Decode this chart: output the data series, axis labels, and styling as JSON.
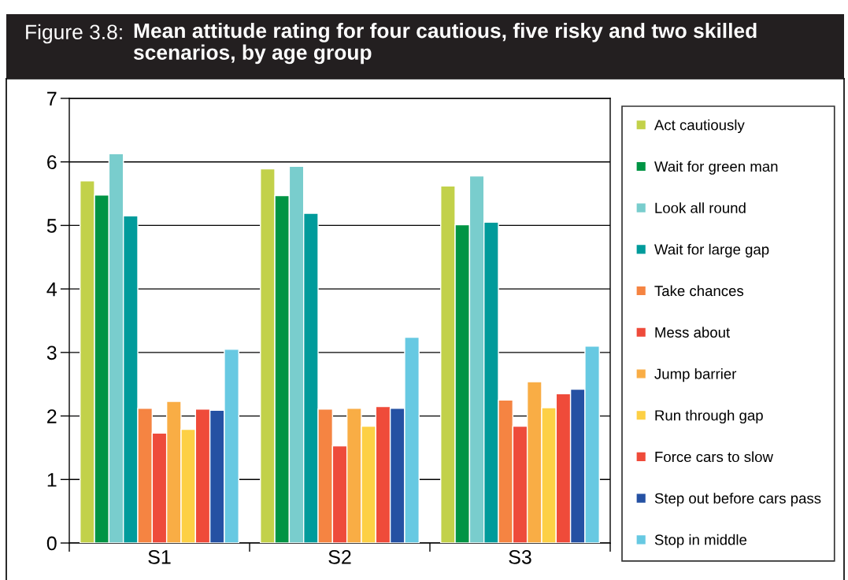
{
  "chart_data": {
    "type": "bar",
    "title": "Mean attitude rating for four cautious, five risky and two skilled scenarios, by age group",
    "annotations": [
      "Figure 3.8:"
    ],
    "categories": [
      "S1",
      "S2",
      "S3"
    ],
    "series": [
      {
        "name": "Act cautiously",
        "color": "#c2d14a",
        "values": [
          5.7,
          5.89,
          5.62
        ]
      },
      {
        "name": "Wait for green man",
        "color": "#009444",
        "values": [
          5.48,
          5.47,
          5.01
        ]
      },
      {
        "name": "Look all round",
        "color": "#79cdcd",
        "values": [
          6.13,
          5.93,
          5.78
        ]
      },
      {
        "name": "Wait for large gap",
        "color": "#009b9b",
        "values": [
          5.15,
          5.19,
          5.05
        ]
      },
      {
        "name": "Take chances",
        "color": "#f58442",
        "values": [
          2.12,
          2.11,
          2.25
        ]
      },
      {
        "name": "Mess about",
        "color": "#ee4b3b",
        "values": [
          1.73,
          1.53,
          1.84
        ]
      },
      {
        "name": "Jump barrier",
        "color": "#f9ad45",
        "values": [
          2.23,
          2.12,
          2.54
        ]
      },
      {
        "name": "Run through gap",
        "color": "#fdd045",
        "values": [
          1.79,
          1.84,
          2.13
        ]
      },
      {
        "name": "Force cars to slow",
        "color": "#ef4b3a",
        "values": [
          2.11,
          2.15,
          2.35
        ]
      },
      {
        "name": "Step out before cars pass",
        "color": "#2551a3",
        "values": [
          2.09,
          2.12,
          2.42
        ]
      },
      {
        "name": "Stop in middle",
        "color": "#67c9e2",
        "values": [
          3.05,
          3.24,
          3.1
        ]
      }
    ],
    "ylim": [
      0,
      7
    ],
    "yticks": [
      0,
      1,
      2,
      3,
      4,
      5,
      6,
      7
    ],
    "grid": "y",
    "legend": "right"
  }
}
